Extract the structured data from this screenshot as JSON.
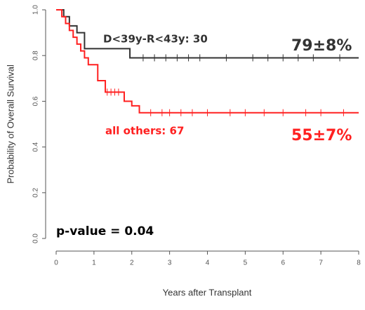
{
  "chart_data": {
    "type": "step",
    "x_label": "Years after Transplant",
    "y_label": "Probability of Overall Survival",
    "xlim": [
      0,
      8
    ],
    "xticks": [
      0,
      1,
      2,
      3,
      4,
      5,
      6,
      7,
      8
    ],
    "ylim": [
      0,
      1
    ],
    "yticks": [
      {
        "value": 0,
        "label": "0.0"
      },
      0.2,
      0.4,
      0.6,
      0.8,
      {
        "value": 1,
        "label": "1.0"
      }
    ],
    "series": [
      {
        "name": "D<39y-R<43y: 30",
        "color": "#333333",
        "x": [
          0,
          0.2,
          0.35,
          0.55,
          0.75,
          1.95,
          8
        ],
        "values": [
          1,
          0.97,
          0.93,
          0.9,
          0.83,
          0.79,
          0.79
        ],
        "censor_x": [
          2.3,
          2.6,
          2.9,
          3.2,
          3.5,
          3.8,
          4.5,
          5.2,
          5.6,
          6.0,
          6.4,
          6.8,
          7.5
        ],
        "censor_values": [
          0.79,
          0.79,
          0.79,
          0.79,
          0.79,
          0.79,
          0.79,
          0.79,
          0.79,
          0.79,
          0.79,
          0.79,
          0.79
        ],
        "end_label": "79±8%"
      },
      {
        "name": "all others: 67",
        "color": "#ff2020",
        "x": [
          0,
          0.15,
          0.25,
          0.35,
          0.45,
          0.55,
          0.65,
          0.75,
          0.85,
          1.1,
          1.3,
          1.8,
          2.0,
          2.2,
          8
        ],
        "values": [
          1,
          0.97,
          0.94,
          0.91,
          0.88,
          0.85,
          0.82,
          0.79,
          0.76,
          0.69,
          0.64,
          0.6,
          0.58,
          0.55,
          0.55
        ],
        "censor_x": [
          1.35,
          1.45,
          1.55,
          1.65,
          2.5,
          2.8,
          3.0,
          3.3,
          3.6,
          4.0,
          4.6,
          5.0,
          5.5,
          6.0,
          6.6,
          7.0,
          7.6
        ],
        "censor_values": [
          0.64,
          0.64,
          0.64,
          0.64,
          0.55,
          0.55,
          0.55,
          0.55,
          0.55,
          0.55,
          0.55,
          0.55,
          0.55,
          0.55,
          0.55,
          0.55,
          0.55
        ],
        "end_label": "55±7%"
      }
    ],
    "annotation": "p-value = 0.04"
  }
}
